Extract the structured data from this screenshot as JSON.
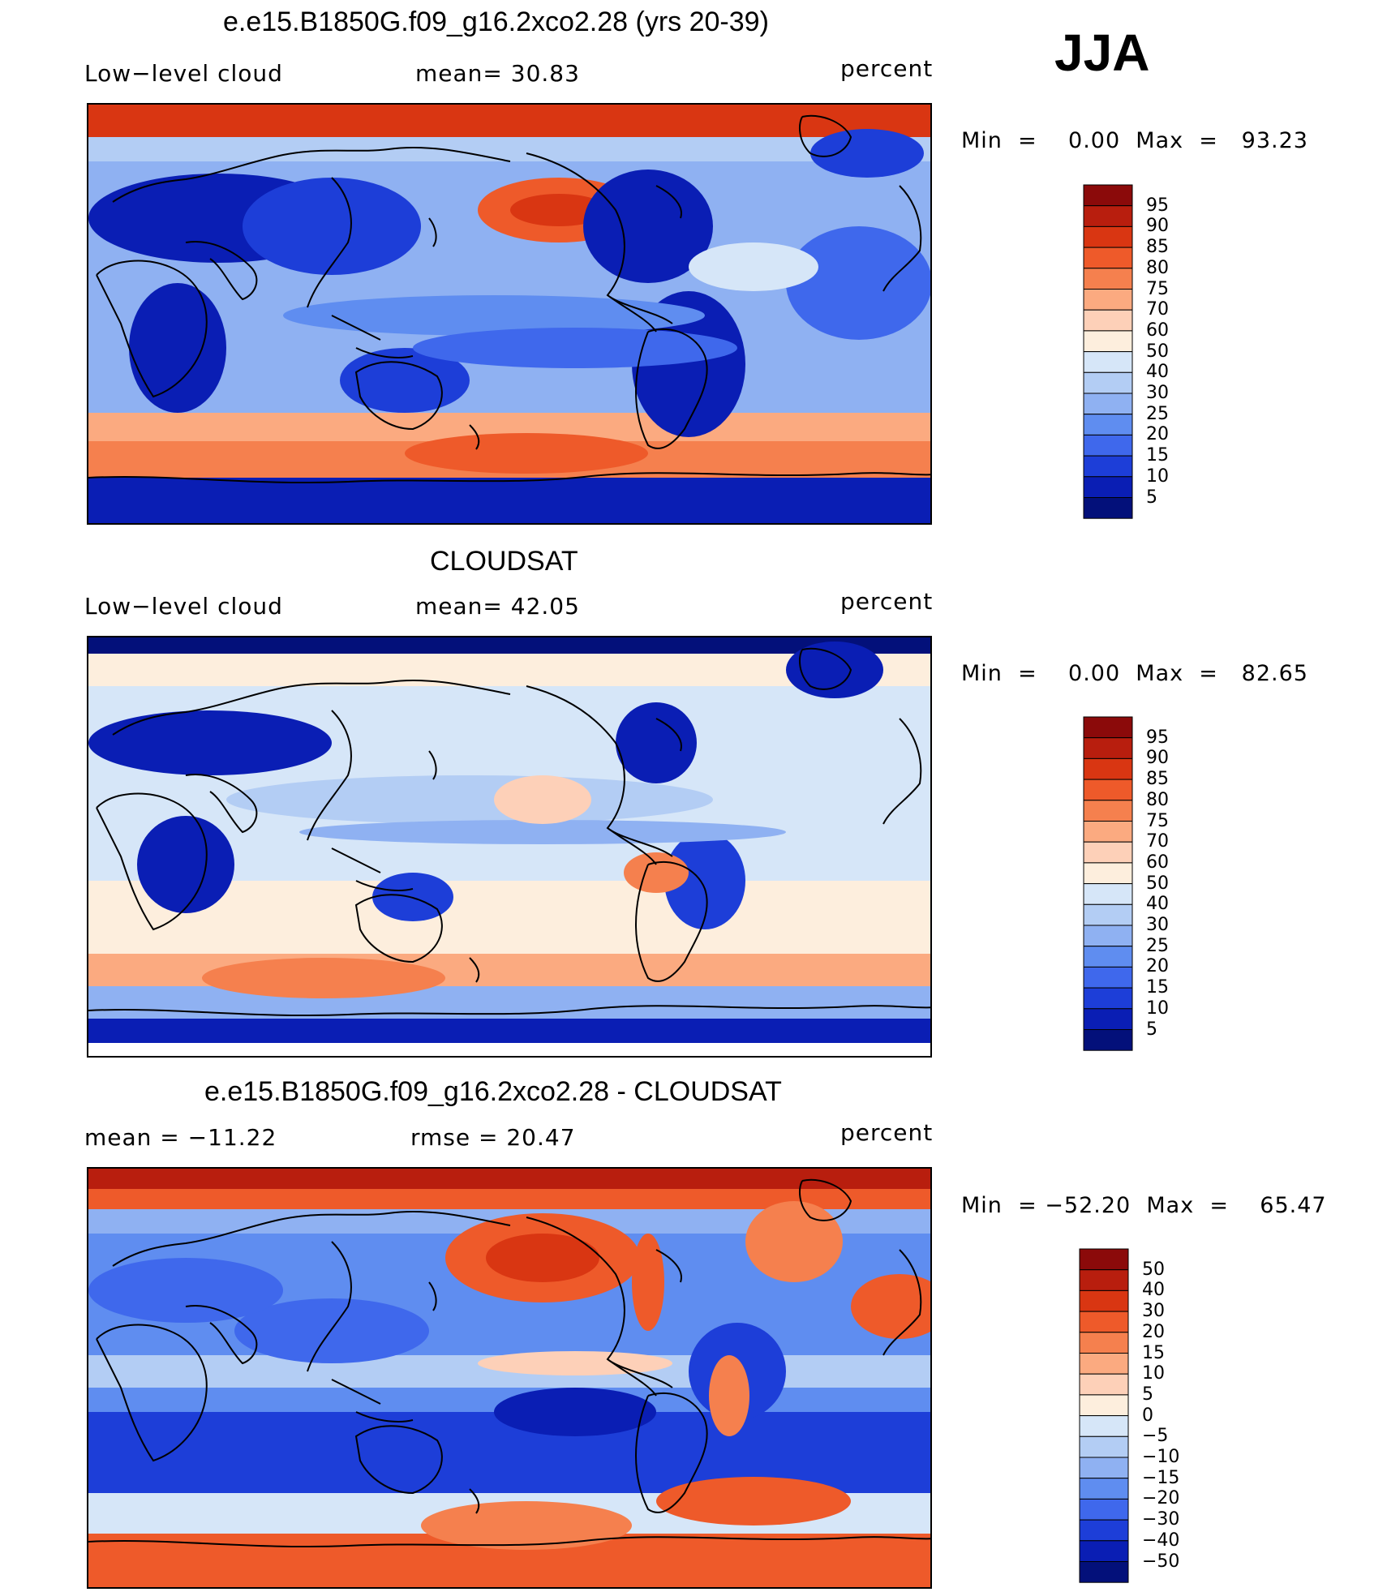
{
  "season": "JJA",
  "panels": [
    {
      "title": "e.e15.B1850G.f09_g16.2xco2.28 (yrs 20-39)",
      "left_label": "Low−level cloud",
      "center_label": "mean=   30.83",
      "units": "percent",
      "minmax": "Min  =    0.00  Max  =   93.23",
      "colorbar": {
        "labels": [
          "95",
          "90",
          "85",
          "80",
          "75",
          "70",
          "60",
          "50",
          "40",
          "30",
          "25",
          "20",
          "15",
          "10",
          "5"
        ],
        "colors": [
          "#8b0a0a",
          "#b81e0e",
          "#d93612",
          "#ee5a2a",
          "#f5804e",
          "#fbaa80",
          "#fdd0b8",
          "#fdeedd",
          "#d6e6f8",
          "#b3cdf4",
          "#8fb1f2",
          "#5f8df0",
          "#3f68ec",
          "#1d3ed8",
          "#0a1eb4",
          "#03107a"
        ]
      },
      "map_style": "model"
    },
    {
      "title": "CLOUDSAT",
      "left_label": "Low−level cloud",
      "center_label": "mean=   42.05",
      "units": "percent",
      "minmax": "Min  =    0.00  Max  =   82.65",
      "colorbar": {
        "labels": [
          "95",
          "90",
          "85",
          "80",
          "75",
          "70",
          "60",
          "50",
          "40",
          "30",
          "25",
          "20",
          "15",
          "10",
          "5"
        ],
        "colors": [
          "#8b0a0a",
          "#b81e0e",
          "#d93612",
          "#ee5a2a",
          "#f5804e",
          "#fbaa80",
          "#fdd0b8",
          "#fdeedd",
          "#d6e6f8",
          "#b3cdf4",
          "#8fb1f2",
          "#5f8df0",
          "#3f68ec",
          "#1d3ed8",
          "#0a1eb4",
          "#03107a"
        ]
      },
      "map_style": "obs"
    },
    {
      "title": "e.e15.B1850G.f09_g16.2xco2.28 - CLOUDSAT",
      "left_label": "mean  =  −11.22",
      "center_label": "rmse  =    20.47",
      "units": "percent",
      "minmax": "Min  = −52.20  Max  =    65.47",
      "colorbar": {
        "labels": [
          "50",
          "40",
          "30",
          "20",
          "15",
          "10",
          "5",
          "0",
          "−5",
          "−10",
          "−15",
          "−20",
          "−30",
          "−40",
          "−50"
        ],
        "colors": [
          "#8b0a0a",
          "#b81e0e",
          "#d93612",
          "#ee5a2a",
          "#f5804e",
          "#fbaa80",
          "#fdd0b8",
          "#fdeedd",
          "#d6e6f8",
          "#b3cdf4",
          "#8fb1f2",
          "#5f8df0",
          "#3f68ec",
          "#1d3ed8",
          "#0a1eb4",
          "#03107a"
        ]
      },
      "map_style": "diff"
    }
  ]
}
